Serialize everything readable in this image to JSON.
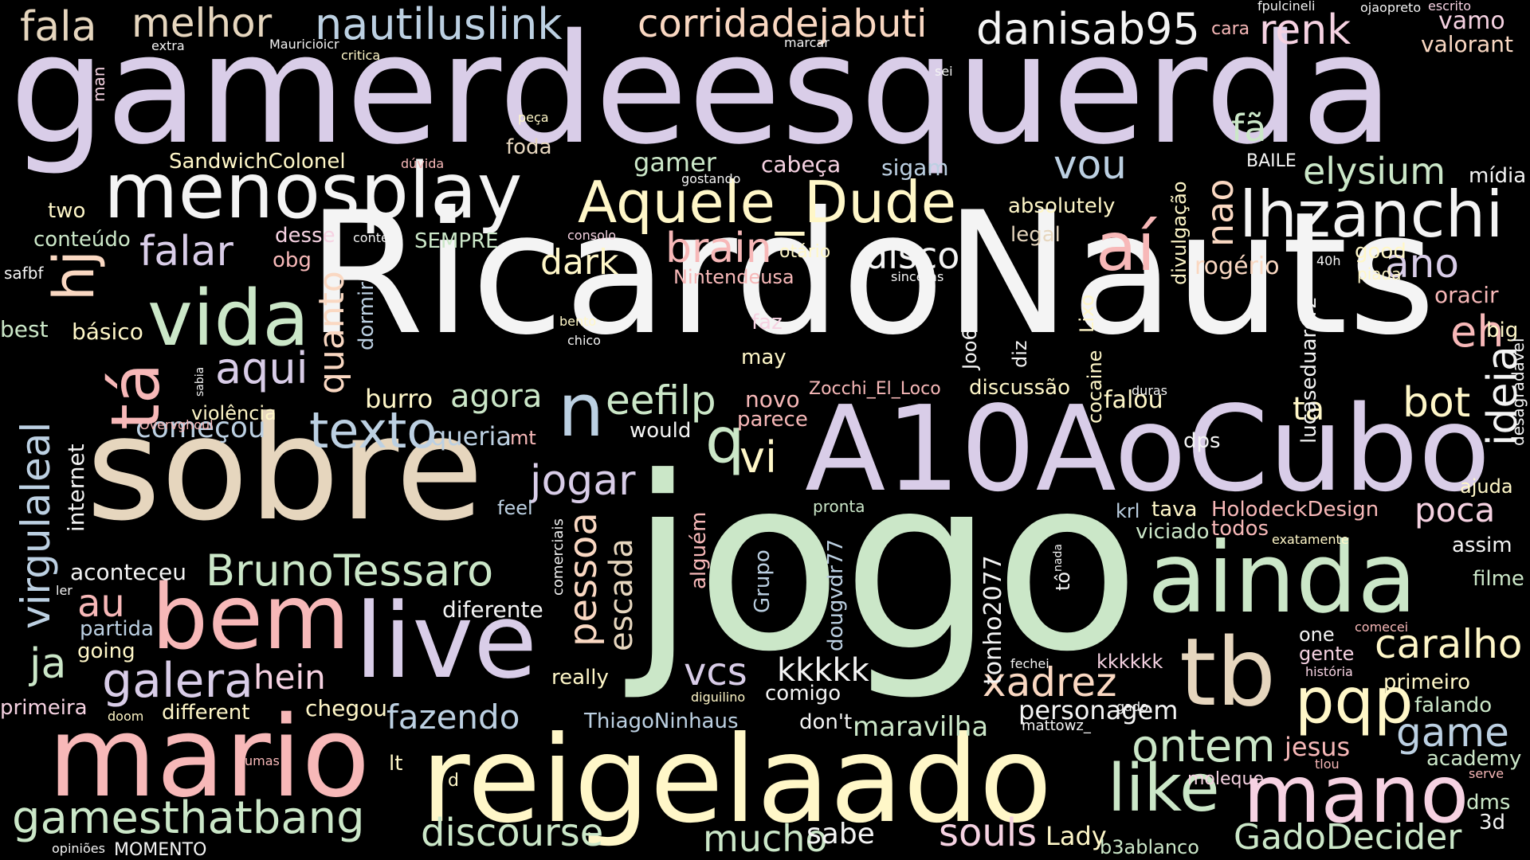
{
  "palette": {
    "lavender": "#D9CDE8",
    "green": "#CBE7C8",
    "beige": "#E6D6BE",
    "pink": "#F7B8B8",
    "yellow": "#FFF7C8",
    "blue": "#BCD0E2",
    "white": "#F4F4F4",
    "peach": "#FAD8C2",
    "rose": "#F6D2E2"
  },
  "words": [
    {
      "text": "gamerdeesquerda",
      "color": "#D9CDE8"
    },
    {
      "text": "RicardoNauts",
      "color": "#F4F4F4"
    },
    {
      "text": "jogo",
      "color": "#CBE7C8"
    },
    {
      "text": "sobre",
      "color": "#E6D6BE"
    },
    {
      "text": "A10AoCubo",
      "color": "#D9CDE8"
    },
    {
      "text": "reigelaado",
      "color": "#FFF7C8"
    },
    {
      "text": "mario",
      "color": "#F7B8B8"
    },
    {
      "text": "menosplay",
      "color": "#F4F4F4"
    },
    {
      "text": "ainda",
      "color": "#CBE7C8"
    },
    {
      "text": "live",
      "color": "#D9CDE8"
    },
    {
      "text": "bem",
      "color": "#F7B8B8"
    },
    {
      "text": "tb",
      "color": "#E6D6BE"
    },
    {
      "text": "mano",
      "color": "#F6D2E2"
    },
    {
      "text": "Aquele_Dude",
      "color": "#FFF7C8"
    },
    {
      "text": "lhzanchi",
      "color": "#F4F4F4"
    },
    {
      "text": "vida",
      "color": "#CBE7C8"
    },
    {
      "text": "gamesthatbang",
      "color": "#CBE7C8"
    },
    {
      "text": "pqp",
      "color": "#FFF7C8"
    },
    {
      "text": "like",
      "color": "#CBE7C8"
    },
    {
      "text": "BrunoTessaro",
      "color": "#CBE7C8"
    },
    {
      "text": "nautiluslink",
      "color": "#BCD0E2"
    },
    {
      "text": "melhor",
      "color": "#E6D6BE"
    },
    {
      "text": "corridadejabuti",
      "color": "#FAD8C2"
    },
    {
      "text": "danisab95",
      "color": "#F4F4F4"
    },
    {
      "text": "renk",
      "color": "#F6D2E2"
    },
    {
      "text": "fala",
      "color": "#E6D6BE"
    },
    {
      "text": "aí",
      "color": "#F7B8B8"
    },
    {
      "text": "n",
      "color": "#BCD0E2"
    },
    {
      "text": "q",
      "color": "#CBE7C8"
    },
    {
      "text": "vi",
      "color": "#FFF7C8"
    },
    {
      "text": "ontem",
      "color": "#CBE7C8"
    },
    {
      "text": "caralho",
      "color": "#FFF7C8"
    },
    {
      "text": "galera",
      "color": "#D9CDE8"
    },
    {
      "text": "texto",
      "color": "#BCD0E2"
    },
    {
      "text": "discourse",
      "color": "#CBE7C8"
    },
    {
      "text": "souls",
      "color": "#F6D2E2"
    },
    {
      "text": "GadoDecider",
      "color": "#CBE7C8"
    },
    {
      "text": "mucho",
      "color": "#CBE7C8"
    },
    {
      "text": "xadrez",
      "color": "#FAD8C2"
    },
    {
      "text": "jogar",
      "color": "#D9CDE8"
    },
    {
      "text": "eefilp",
      "color": "#CBE7C8"
    },
    {
      "text": "brain",
      "color": "#F7B8B8"
    },
    {
      "text": "disco",
      "color": "#F4F4F4"
    },
    {
      "text": "falar",
      "color": "#D9CDE8"
    },
    {
      "text": "aqui",
      "color": "#D9CDE8"
    },
    {
      "text": "agora",
      "color": "#CBE7C8"
    },
    {
      "text": "começou",
      "color": "#BCD0E2"
    },
    {
      "text": "fazendo",
      "color": "#BCD0E2"
    },
    {
      "text": "vcs",
      "color": "#D9CDE8"
    },
    {
      "text": "kkkkk",
      "color": "#F4F4F4"
    },
    {
      "text": "hein",
      "color": "#F6D2E2"
    },
    {
      "text": "au",
      "color": "#F7B8B8"
    },
    {
      "text": "ja",
      "color": "#CBE7C8"
    },
    {
      "text": "vou",
      "color": "#BCD0E2"
    },
    {
      "text": "elysium",
      "color": "#CBE7C8"
    },
    {
      "text": "fã",
      "color": "#CBE7C8"
    },
    {
      "text": "ano",
      "color": "#D9CDE8"
    },
    {
      "text": "eh",
      "color": "#F7B8B8"
    },
    {
      "text": "bot",
      "color": "#FFF7C8"
    },
    {
      "text": "ta",
      "color": "#FFF7C8"
    },
    {
      "text": "poca",
      "color": "#F6D2E2"
    },
    {
      "text": "game",
      "color": "#BCD0E2"
    },
    {
      "text": "jesus",
      "color": "#F7B8B8"
    },
    {
      "text": "sabe",
      "color": "#F4F4F4"
    },
    {
      "text": "Lady",
      "color": "#FFF7C8"
    },
    {
      "text": "dark",
      "color": "#FFF7C8"
    },
    {
      "text": "queria",
      "color": "#BCD0E2"
    },
    {
      "text": "burro",
      "color": "#FFF7C8"
    },
    {
      "text": "gamer",
      "color": "#CBE7C8"
    },
    {
      "text": "cabeça",
      "color": "#F6D2E2"
    },
    {
      "text": "sigam",
      "color": "#BCD0E2"
    },
    {
      "text": "foda",
      "color": "#E6D6BE"
    },
    {
      "text": "falou",
      "color": "#FFF7C8"
    },
    {
      "text": "legal",
      "color": "#E6D6BE"
    },
    {
      "text": "rogério",
      "color": "#FAD8C2"
    },
    {
      "text": "absolutely",
      "color": "#FFF7C8"
    },
    {
      "text": "personagem",
      "color": "#F4F4F4"
    },
    {
      "text": "maravilha",
      "color": "#CBE7C8"
    },
    {
      "text": "diferente",
      "color": "#F4F4F4"
    },
    {
      "text": "chegou",
      "color": "#FFF7C8"
    },
    {
      "text": "different",
      "color": "#FFF7C8"
    },
    {
      "text": "primeira",
      "color": "#F6D2E2"
    },
    {
      "text": "partida",
      "color": "#BCD0E2"
    },
    {
      "text": "going",
      "color": "#FFF7C8"
    },
    {
      "text": "aconteceu",
      "color": "#F4F4F4"
    },
    {
      "text": "violência",
      "color": "#FFF7C8"
    },
    {
      "text": "básico",
      "color": "#FFF7C8"
    },
    {
      "text": "best",
      "color": "#CBE7C8"
    },
    {
      "text": "conteúdo",
      "color": "#CBE7C8"
    },
    {
      "text": "two",
      "color": "#FFF7C8"
    },
    {
      "text": "SandwichColonel",
      "color": "#FFF7C8"
    },
    {
      "text": "desse",
      "color": "#F6D2E2"
    },
    {
      "text": "obg",
      "color": "#F7B8B8"
    },
    {
      "text": "SEMPRE",
      "color": "#CBE7C8"
    },
    {
      "text": "ThiagoNinhaus",
      "color": "#BCD0E2"
    },
    {
      "text": "comigo",
      "color": "#F4F4F4"
    },
    {
      "text": "don't",
      "color": "#F4F4F4"
    },
    {
      "text": "novo",
      "color": "#F7B8B8"
    },
    {
      "text": "parece",
      "color": "#F7B8B8"
    },
    {
      "text": "would",
      "color": "#F4F4F4"
    },
    {
      "text": "may",
      "color": "#FFF7C8"
    },
    {
      "text": "faz",
      "color": "#F6D2E2"
    },
    {
      "text": "otário",
      "color": "#FFF7C8"
    },
    {
      "text": "Nintendeusa",
      "color": "#F7B8B8"
    },
    {
      "text": "discussão",
      "color": "#FFF7C8"
    },
    {
      "text": "Zocchi_El_Loco",
      "color": "#F7B8B8"
    },
    {
      "text": "HolodeckDesign",
      "color": "#F7B8B8"
    },
    {
      "text": "tava",
      "color": "#FFF7C8"
    },
    {
      "text": "krl",
      "color": "#BCD0E2"
    },
    {
      "text": "viciado",
      "color": "#CBE7C8"
    },
    {
      "text": "todos",
      "color": "#F7B8B8"
    },
    {
      "text": "dps",
      "color": "#F4F4F4"
    },
    {
      "text": "kkkkkk",
      "color": "#F6D2E2"
    },
    {
      "text": "assim",
      "color": "#F4F4F4"
    },
    {
      "text": "filme",
      "color": "#CBE7C8"
    },
    {
      "text": "ajuda",
      "color": "#FFF7C8"
    },
    {
      "text": "primeiro",
      "color": "#FFF7C8"
    },
    {
      "text": "falando",
      "color": "#CBE7C8"
    },
    {
      "text": "academy",
      "color": "#CBE7C8"
    },
    {
      "text": "one",
      "color": "#F4F4F4"
    },
    {
      "text": "gente",
      "color": "#F6D2E2"
    },
    {
      "text": "big",
      "color": "#FFF7C8"
    },
    {
      "text": "oracir",
      "color": "#F7B8B8"
    },
    {
      "text": "good",
      "color": "#FFF7C8"
    },
    {
      "text": "piada",
      "color": "#FFF7C8"
    },
    {
      "text": "mídia",
      "color": "#F4F4F4"
    },
    {
      "text": "vamo",
      "color": "#F6D2E2"
    },
    {
      "text": "valorant",
      "color": "#FAD8C2"
    },
    {
      "text": "cara",
      "color": "#F7B8B8"
    },
    {
      "text": "BAILE",
      "color": "#F4F4F4"
    },
    {
      "text": "dms",
      "color": "#CBE7C8"
    },
    {
      "text": "3d",
      "color": "#F4F4F4"
    },
    {
      "text": "moleque",
      "color": "#F6D2E2"
    },
    {
      "text": "lt",
      "color": "#FFF7C8"
    },
    {
      "text": "d",
      "color": "#FFF7C8"
    },
    {
      "text": "MOMENTO",
      "color": "#F4F4F4"
    },
    {
      "text": "b3ablanco",
      "color": "#CBE7C8"
    },
    {
      "text": "really",
      "color": "#FFF7C8"
    },
    {
      "text": "feel",
      "color": "#BCD0E2"
    },
    {
      "text": "pronta",
      "color": "#CBE7C8"
    },
    {
      "text": "mt",
      "color": "#F7B8B8"
    },
    {
      "text": "fechei",
      "color": "#F4F4F4"
    },
    {
      "text": "mattowz_",
      "color": "#F4F4F4"
    },
    {
      "text": "história",
      "color": "#F6D2E2"
    },
    {
      "text": "exatamente",
      "color": "#FFF7C8"
    },
    {
      "text": "comecei",
      "color": "#F7B8B8"
    },
    {
      "text": "serve",
      "color": "#F7B8B8"
    },
    {
      "text": "tlou",
      "color": "#F7B8B8"
    },
    {
      "text": "gado",
      "color": "#F4F4F4"
    },
    {
      "text": "diguilino",
      "color": "#FFF7C8"
    },
    {
      "text": "doom",
      "color": "#FFF7C8"
    },
    {
      "text": "umas",
      "color": "#F7B8B8"
    },
    {
      "text": "opiniões",
      "color": "#F4F4F4"
    },
    {
      "text": "ler",
      "color": "#F4F4F4"
    },
    {
      "text": "Overvghoul",
      "color": "#F7B8B8"
    },
    {
      "text": "bento",
      "color": "#FFF7C8"
    },
    {
      "text": "chico",
      "color": "#F4F4F4"
    },
    {
      "text": "sinceras",
      "color": "#F4F4F4"
    },
    {
      "text": "duras",
      "color": "#F4F4F4"
    },
    {
      "text": "40h",
      "color": "#F4F4F4"
    },
    {
      "text": "safbf",
      "color": "#F4F4F4"
    },
    {
      "text": "conter",
      "color": "#F4F4F4"
    },
    {
      "text": "consolo",
      "color": "#F6D2E2"
    },
    {
      "text": "gostando",
      "color": "#F4F4F4"
    },
    {
      "text": "dúvida",
      "color": "#F7B8B8"
    },
    {
      "text": "peça",
      "color": "#FFF7C8"
    },
    {
      "text": "extra",
      "color": "#F4F4F4"
    },
    {
      "text": "Mauricioicr",
      "color": "#F4F4F4"
    },
    {
      "text": "critica",
      "color": "#FFF7C8"
    },
    {
      "text": "marcar",
      "color": "#F4F4F4"
    },
    {
      "text": "sei",
      "color": "#F4F4F4"
    },
    {
      "text": "fpulcineli",
      "color": "#F4F4F4"
    },
    {
      "text": "ojaopreto",
      "color": "#F4F4F4"
    },
    {
      "text": "escrito",
      "color": "#F6D2E2"
    },
    {
      "text": "tô",
      "color": "#F4F4F4"
    },
    {
      "text": "nada",
      "color": "#F4F4F4"
    },
    {
      "text": "sabia",
      "color": "#F4F4F4"
    },
    {
      "text": "tá",
      "color": "#F7B8B8"
    },
    {
      "text": "hj",
      "color": "#FAD8C2"
    },
    {
      "text": "virgulaleal",
      "color": "#BCD0E2"
    },
    {
      "text": "quanto",
      "color": "#FAD8C2"
    },
    {
      "text": "dormir",
      "color": "#BCD0E2"
    },
    {
      "text": "internet",
      "color": "#F4F4F4"
    },
    {
      "text": "pessoa",
      "color": "#FAD8C2"
    },
    {
      "text": "escada",
      "color": "#E6D6BE"
    },
    {
      "text": "alguém",
      "color": "#F7B8B8"
    },
    {
      "text": "Grupo",
      "color": "#BCD0E2"
    },
    {
      "text": "dougvdr77",
      "color": "#BCD0E2"
    },
    {
      "text": "tonho2077",
      "color": "#F4F4F4"
    },
    {
      "text": "comerciais",
      "color": "#F4F4F4"
    },
    {
      "text": "nao",
      "color": "#FAD8C2"
    },
    {
      "text": "divulgação",
      "color": "#FFF7C8"
    },
    {
      "text": "Joo677821655",
      "color": "#F4F4F4"
    },
    {
      "text": "diz",
      "color": "#F4F4F4"
    },
    {
      "text": "cocaine",
      "color": "#FFF7C8"
    },
    {
      "text": "Lixo",
      "color": "#FFF7C8"
    },
    {
      "text": "lucaseduardrz",
      "color": "#F4F4F4"
    },
    {
      "text": "ideia",
      "color": "#F4F4F4"
    },
    {
      "text": "desagradável",
      "color": "#F4F4F4"
    },
    {
      "text": "man",
      "color": "#F6D2E2"
    }
  ]
}
